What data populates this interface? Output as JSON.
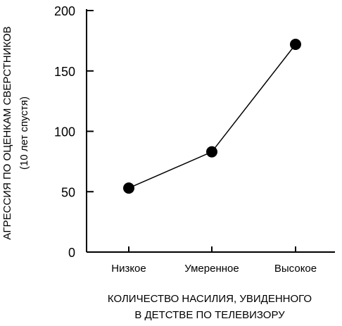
{
  "chart_data": {
    "type": "line",
    "categories": [
      "Низкое",
      "Умеренное",
      "Высокое"
    ],
    "series": [
      {
        "values": [
          53,
          83,
          172
        ]
      }
    ],
    "yticks": [
      "0",
      "50",
      "100",
      "150",
      "200"
    ],
    "ylim": [
      0,
      200
    ],
    "ylabel_line1": "АГРЕССИЯ ПО ОЦЕНКАМ СВЕРСТНИКОВ",
    "ylabel_line2": "(10 лет спустя)",
    "xlabel_line1": "КОЛИЧЕСТВО НАСИЛИЯ, УВИДЕННОГО",
    "xlabel_line2": "В ДЕТСТВЕ ПО ТЕЛЕВИЗОРУ",
    "grid": false,
    "marker_color": "#000000",
    "line_color": "#000000"
  }
}
